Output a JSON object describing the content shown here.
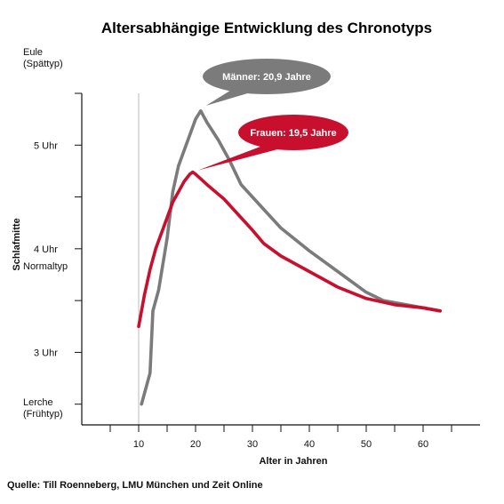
{
  "chart_data": {
    "type": "line",
    "title": "Altersabhängige Entwicklung des Chronotyps",
    "xlabel": "Alter in Jahren",
    "ylabel": "Schlafmitte",
    "xlim": [
      0,
      70
    ],
    "ylim": [
      2.3,
      5.5
    ],
    "x_ticks": [
      10,
      20,
      30,
      40,
      50,
      60
    ],
    "y_labels": [
      {
        "value": 5,
        "text": "5 Uhr"
      },
      {
        "value": 4,
        "text": "4 Uhr"
      },
      {
        "value": 3,
        "text": "3 Uhr"
      }
    ],
    "y_annotations": [
      {
        "lines": [
          "Eule",
          "(Spättyp)"
        ]
      },
      {
        "lines": [
          "Normaltyp"
        ]
      },
      {
        "lines": [
          "Lerche",
          "(Frühtyp)"
        ]
      }
    ],
    "vertical_reference_x": 10,
    "grid": false,
    "series": [
      {
        "name": "Männer",
        "color": "#7b7b7b",
        "points": [
          [
            10.5,
            2.5
          ],
          [
            12,
            2.8
          ],
          [
            12.5,
            3.4
          ],
          [
            13.5,
            3.6
          ],
          [
            15,
            4.1
          ],
          [
            16,
            4.55
          ],
          [
            17,
            4.8
          ],
          [
            18,
            4.95
          ],
          [
            19,
            5.1
          ],
          [
            20,
            5.25
          ],
          [
            20.9,
            5.33
          ],
          [
            22,
            5.22
          ],
          [
            24,
            5.05
          ],
          [
            26,
            4.85
          ],
          [
            28,
            4.62
          ],
          [
            30,
            4.5
          ],
          [
            32,
            4.38
          ],
          [
            35,
            4.2
          ],
          [
            40,
            3.98
          ],
          [
            45,
            3.78
          ],
          [
            50,
            3.58
          ],
          [
            53,
            3.5
          ],
          [
            57,
            3.46
          ],
          [
            60,
            3.43
          ],
          [
            63,
            3.4
          ]
        ]
      },
      {
        "name": "Frauen",
        "color": "#c8102e",
        "points": [
          [
            10,
            3.25
          ],
          [
            11,
            3.55
          ],
          [
            12,
            3.8
          ],
          [
            13,
            4.0
          ],
          [
            14,
            4.15
          ],
          [
            15,
            4.3
          ],
          [
            16,
            4.45
          ],
          [
            17,
            4.55
          ],
          [
            18,
            4.65
          ],
          [
            19,
            4.72
          ],
          [
            19.5,
            4.74
          ],
          [
            20,
            4.72
          ],
          [
            22,
            4.62
          ],
          [
            25,
            4.48
          ],
          [
            28,
            4.3
          ],
          [
            30,
            4.18
          ],
          [
            32,
            4.05
          ],
          [
            35,
            3.93
          ],
          [
            40,
            3.78
          ],
          [
            45,
            3.63
          ],
          [
            50,
            3.52
          ],
          [
            55,
            3.46
          ],
          [
            60,
            3.43
          ],
          [
            63,
            3.4
          ]
        ]
      }
    ],
    "callouts": [
      {
        "text": "Männer: 20,9 Jahre",
        "color": "#7b7b7b",
        "x": 20.9,
        "y": 5.33
      },
      {
        "text": "Frauen: 19,5 Jahre",
        "color": "#c8102e",
        "x": 19.5,
        "y": 4.74
      }
    ]
  },
  "source": "Quelle: Till Roenneberg, LMU München und Zeit Online"
}
